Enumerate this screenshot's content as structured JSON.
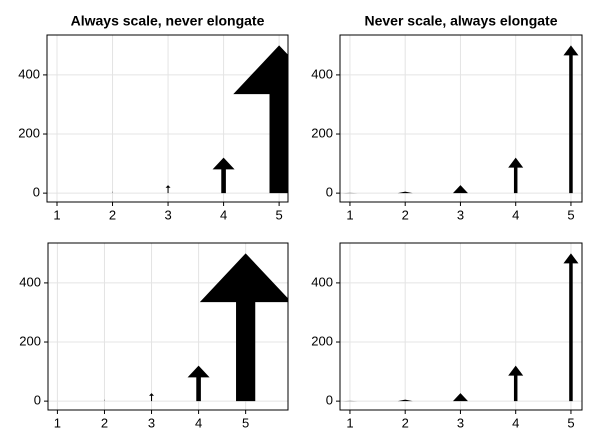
{
  "chart_data": [
    {
      "type": "arrow",
      "title": "Always scale, never elongate",
      "arrowhead": "scaled",
      "x": [
        1,
        2,
        3,
        4,
        5
      ],
      "values": [
        1,
        5,
        27,
        120,
        500
      ],
      "color": "#000000",
      "xlim": [
        0.82,
        5.16
      ],
      "ylim": [
        -30,
        535
      ],
      "xticks": [
        1,
        2,
        3,
        4,
        5
      ],
      "yticks": [
        0,
        200,
        400
      ],
      "grid": true
    },
    {
      "type": "arrow",
      "title": "Never scale, always elongate",
      "arrowhead": "fixed",
      "x": [
        1,
        2,
        3,
        4,
        5
      ],
      "values": [
        1,
        5,
        27,
        120,
        500
      ],
      "color": "#000000",
      "xlim": [
        0.82,
        5.2
      ],
      "ylim": [
        -30,
        535
      ],
      "xticks": [
        1,
        2,
        3,
        4,
        5
      ],
      "yticks": [
        0,
        200,
        400
      ],
      "grid": true
    },
    {
      "type": "arrow",
      "arrowhead": "scaled",
      "x": [
        1,
        2,
        3,
        4,
        5
      ],
      "values": [
        1,
        5,
        27,
        120,
        500
      ],
      "color": "#000000",
      "xlim": [
        0.8,
        5.9
      ],
      "ylim": [
        -30,
        535
      ],
      "xticks": [
        1,
        2,
        3,
        4,
        5
      ],
      "yticks": [
        0,
        200,
        400
      ],
      "grid": true
    },
    {
      "type": "arrow",
      "arrowhead": "fixed",
      "x": [
        1,
        2,
        3,
        4,
        5
      ],
      "values": [
        1,
        5,
        27,
        120,
        500
      ],
      "color": "#000000",
      "xlim": [
        0.82,
        5.2
      ],
      "ylim": [
        -30,
        535
      ],
      "xticks": [
        1,
        2,
        3,
        4,
        5
      ],
      "yticks": [
        0,
        200,
        400
      ],
      "grid": true
    }
  ]
}
